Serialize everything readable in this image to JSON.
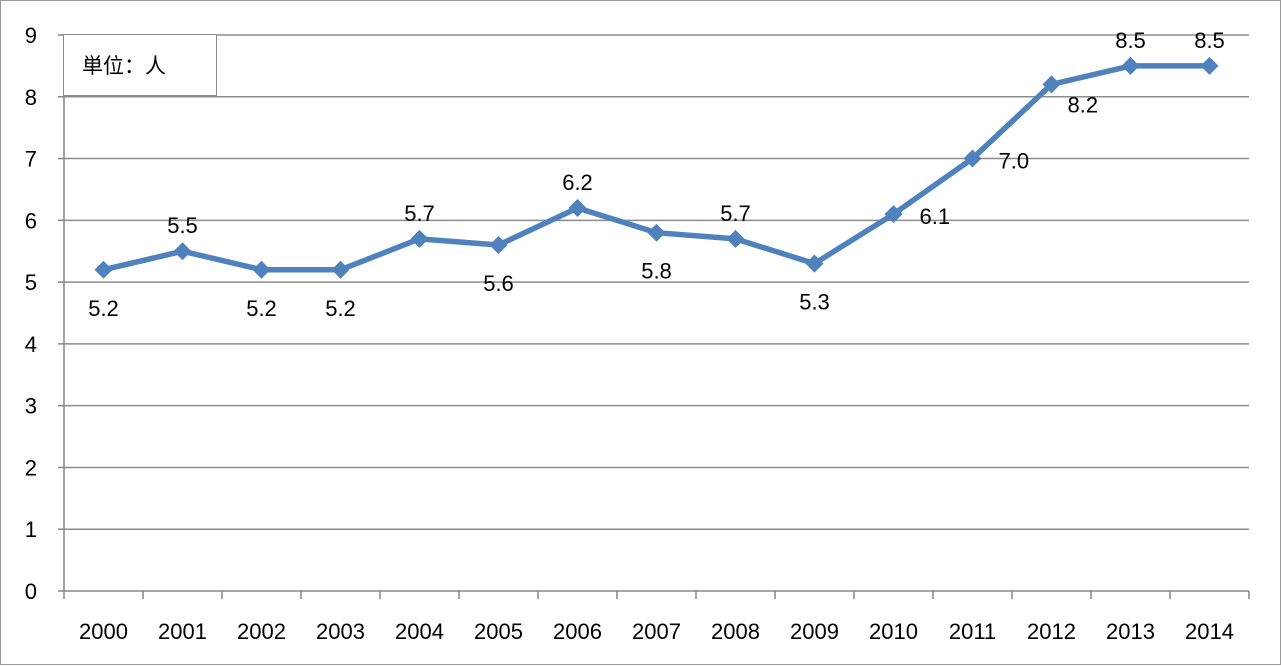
{
  "chart_data": {
    "type": "line",
    "unit_label": "単位：人",
    "x": [
      "2000",
      "2001",
      "2002",
      "2003",
      "2004",
      "2005",
      "2006",
      "2007",
      "2008",
      "2009",
      "2010",
      "2011",
      "2012",
      "2013",
      "2014"
    ],
    "series": [
      {
        "values": [
          5.2,
          5.5,
          5.2,
          5.2,
          5.7,
          5.6,
          6.2,
          5.8,
          5.7,
          5.3,
          6.1,
          7.0,
          8.2,
          8.5,
          8.5
        ],
        "data_labels": [
          "5.2",
          "5.5",
          "5.2",
          "5.2",
          "5.7",
          "5.6",
          "6.2",
          "5.8",
          "5.7",
          "5.3",
          "6.1",
          "7.0",
          "8.2",
          "8.5",
          "8.5"
        ]
      }
    ],
    "y_ticks": [
      "0",
      "1",
      "2",
      "3",
      "4",
      "5",
      "6",
      "7",
      "8",
      "9"
    ],
    "ylim": [
      0,
      9
    ],
    "grid": true,
    "line_color": "#4f81bd",
    "grid_color": "#8c8c8c"
  }
}
